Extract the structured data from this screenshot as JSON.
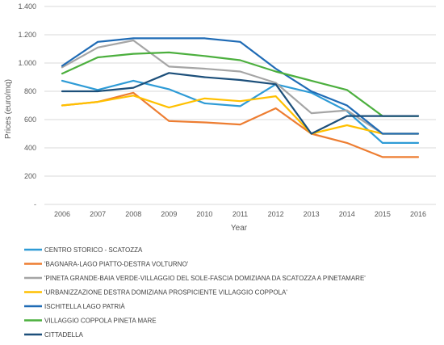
{
  "chart_data": {
    "type": "line",
    "xlabel": "Year",
    "ylabel": "Prices (euro/mq)",
    "ylim": [
      0,
      1400
    ],
    "y_ticks": [
      "-",
      "200",
      "400",
      "600",
      "800",
      "1.000",
      "1.200",
      "1.400"
    ],
    "categories": [
      "2006",
      "2007",
      "2008",
      "2009",
      "2010",
      "2011",
      "2012",
      "2013",
      "2014",
      "2015",
      "2016"
    ],
    "grid": true,
    "legend_position": "bottom",
    "series": [
      {
        "name": "CENTRO STORICO - SCATOZZA",
        "color": "#2E9BD6",
        "values": [
          875,
          810,
          875,
          815,
          715,
          695,
          850,
          790,
          660,
          435,
          435
        ]
      },
      {
        "name": "'BAGNARA-LAGO PIATTO-DESTRA VOLTURNO'",
        "color": "#ED7D31",
        "values": [
          700,
          725,
          790,
          590,
          580,
          565,
          680,
          500,
          435,
          335,
          335
        ]
      },
      {
        "name": "'PINETA GRANDE-BAIA VERDE-VILLAGGIO DEL SOLE-FASCIA DOMIZIANA DA SCATOZZA A PINETAMARE'",
        "color": "#A5A5A5",
        "values": [
          970,
          1110,
          1160,
          975,
          960,
          940,
          860,
          645,
          665,
          500,
          500
        ]
      },
      {
        "name": "'URBANIZZAZIONE DESTRA DOMIZIANA PROSPICIENTE VILLAGGIO COPPOLA'",
        "color": "#FFC000",
        "values": [
          700,
          725,
          770,
          685,
          750,
          730,
          765,
          500,
          560,
          500,
          500
        ]
      },
      {
        "name": "ISCHITELLA LAGO PATRIÀ",
        "color": "#1F6BB5",
        "values": [
          980,
          1150,
          1175,
          1175,
          1175,
          1150,
          960,
          800,
          700,
          500,
          500
        ]
      },
      {
        "name": "VILLAGGIO COPPOLA PINETA MARE",
        "color": "#4CAF3E",
        "values": [
          925,
          1040,
          1065,
          1075,
          1050,
          1020,
          940,
          875,
          810,
          625,
          625
        ]
      },
      {
        "name": "CITTADELLA",
        "color": "#1C4F7A",
        "values": [
          800,
          800,
          825,
          930,
          900,
          880,
          850,
          500,
          625,
          625,
          625
        ]
      }
    ]
  }
}
